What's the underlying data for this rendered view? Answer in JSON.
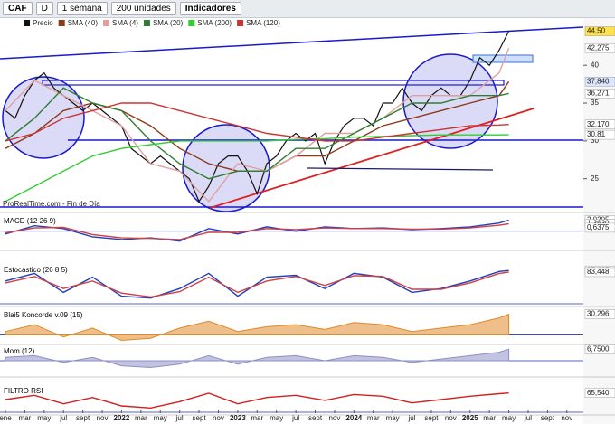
{
  "toolbar": {
    "symbol": "CAF",
    "mode": "D",
    "period": "1 semana",
    "units": "200 unidades",
    "indicators": "Indicadores"
  },
  "chart_data": [
    {
      "type": "line",
      "source": "ProRealTime.com - Fin de Día",
      "xlim": [
        -0.56,
        59.7
      ],
      "xticks": [
        {
          "value": 0,
          "label": "ene"
        },
        {
          "value": 2,
          "label": "mar"
        },
        {
          "value": 4,
          "label": "may"
        },
        {
          "value": 6,
          "label": "jul"
        },
        {
          "value": 8,
          "label": "sept"
        },
        {
          "value": 10,
          "label": "nov"
        },
        {
          "value": 12,
          "label": "2022"
        },
        {
          "value": 14,
          "label": "mar"
        },
        {
          "value": 16,
          "label": "may"
        },
        {
          "value": 18,
          "label": "jul"
        },
        {
          "value": 20,
          "label": "sept"
        },
        {
          "value": 22,
          "label": "nov"
        },
        {
          "value": 24,
          "label": "2023"
        },
        {
          "value": 26,
          "label": "mar"
        },
        {
          "value": 28,
          "label": "may"
        },
        {
          "value": 30,
          "label": "jul"
        },
        {
          "value": 32,
          "label": "sept"
        },
        {
          "value": 34,
          "label": "nov"
        },
        {
          "value": 36,
          "label": "2024"
        },
        {
          "value": 38,
          "label": "mar"
        },
        {
          "value": 40,
          "label": "may"
        },
        {
          "value": 42,
          "label": "jul"
        },
        {
          "value": 44,
          "label": "sept"
        },
        {
          "value": 46,
          "label": "nov"
        },
        {
          "value": 48,
          "label": "2025"
        },
        {
          "value": 50,
          "label": "mar"
        },
        {
          "value": 52,
          "label": "may"
        },
        {
          "value": 54,
          "label": "jul"
        },
        {
          "value": 56,
          "label": "sept"
        },
        {
          "value": 58,
          "label": "nov"
        }
      ],
      "ylim": [
        20.9,
        46
      ],
      "yticks": [
        25,
        30,
        35,
        40
      ],
      "series": [
        {
          "name": "Precio",
          "color": "#111111",
          "x": [
            0,
            1,
            2,
            3,
            4,
            5,
            6,
            7,
            8,
            9,
            10,
            11,
            12,
            13,
            14,
            15,
            16,
            17,
            18,
            19,
            20,
            21,
            22,
            23,
            24,
            25,
            26,
            27,
            28,
            29,
            30,
            31,
            32,
            33,
            34,
            35,
            36,
            37,
            38,
            39,
            40,
            41,
            42,
            43,
            44,
            45,
            46,
            47,
            48,
            49,
            50,
            51,
            52
          ],
          "values": [
            34,
            33,
            36,
            38,
            39,
            37,
            36,
            35,
            34,
            35,
            34,
            33,
            32,
            29,
            28,
            27,
            28,
            27,
            26,
            25,
            22,
            24,
            27,
            28,
            28,
            26,
            23,
            27,
            28,
            30,
            31,
            30,
            31,
            27,
            30,
            32,
            33,
            33,
            32,
            35,
            35,
            37,
            35,
            34,
            36,
            37,
            36,
            36,
            38,
            41,
            40,
            42,
            44.5
          ]
        },
        {
          "name": "SMA (40)",
          "color": "#8b3a1a",
          "x": [
            0,
            3,
            6,
            9,
            12,
            15,
            18,
            21,
            24,
            27,
            30,
            33,
            36,
            39,
            42,
            45,
            48,
            51,
            52
          ],
          "values": [
            29,
            31,
            34,
            35,
            34,
            32,
            29,
            27,
            26,
            26,
            28,
            28,
            30,
            32,
            33,
            34,
            35,
            36,
            37.84
          ]
        },
        {
          "name": "SMA (4)",
          "color": "#e0a0a0",
          "x": [
            0,
            3,
            6,
            9,
            12,
            15,
            18,
            21,
            24,
            27,
            30,
            33,
            36,
            39,
            42,
            45,
            48,
            51,
            52
          ],
          "values": [
            34,
            38,
            36,
            34,
            32,
            27,
            26,
            22,
            27,
            26,
            28,
            31,
            31,
            33,
            36,
            36,
            36,
            39,
            42.275
          ]
        },
        {
          "name": "SMA (20)",
          "color": "#2e7d32",
          "x": [
            0,
            3,
            6,
            9,
            12,
            15,
            18,
            21,
            24,
            27,
            30,
            33,
            36,
            39,
            42,
            45,
            48,
            51,
            52
          ],
          "values": [
            30,
            33,
            37,
            35,
            34,
            30,
            27,
            25,
            26,
            26,
            29,
            29,
            31,
            33,
            35,
            35,
            36,
            36,
            36.271
          ]
        },
        {
          "name": "SMA (200)",
          "color": "#33cc33",
          "x": [
            0,
            3,
            6,
            9,
            12,
            15,
            18,
            21,
            24,
            27,
            30,
            33,
            36,
            39,
            42,
            45,
            48,
            51,
            52
          ],
          "values": [
            22,
            24,
            26,
            28,
            29,
            29.5,
            30,
            30,
            30,
            30,
            30.2,
            30.3,
            30.5,
            30.6,
            30.7,
            30.8,
            30.8,
            30.8,
            30.81
          ]
        },
        {
          "name": "SMA (120)",
          "color": "#cc3333",
          "x": [
            0,
            3,
            6,
            9,
            12,
            15,
            18,
            21,
            24,
            27,
            30,
            33,
            36,
            39,
            42,
            45,
            48,
            51,
            52
          ],
          "values": [
            30,
            31,
            33,
            34,
            35,
            35,
            34,
            33,
            32,
            31,
            30.5,
            30,
            30,
            30.5,
            31,
            31.5,
            32,
            32.1,
            32.17
          ]
        }
      ],
      "tags": [
        {
          "value": 44.5,
          "label": "44,50",
          "color": "#ffe14d"
        },
        {
          "value": 42.275,
          "label": "42,275",
          "color": "#ffffff"
        },
        {
          "value": 37.84,
          "label": "37,840",
          "color": "#dde6ff"
        },
        {
          "value": 36.271,
          "label": "36,271",
          "color": "#ffffff"
        },
        {
          "value": 32.17,
          "label": "32,170",
          "color": "#ffffff"
        },
        {
          "value": 30.81,
          "label": "30,81",
          "color": "#ffffff"
        }
      ]
    },
    {
      "type": "line",
      "title": "MACD (12 26 9)",
      "ylim": [
        -3,
        2.6
      ],
      "x": [
        0,
        3,
        6,
        9,
        12,
        15,
        18,
        21,
        24,
        27,
        30,
        33,
        36,
        39,
        42,
        45,
        48,
        51,
        52
      ],
      "series": [
        {
          "color": "#1f3fbf",
          "values": [
            -0.5,
            1,
            0.5,
            -1,
            -1.5,
            -1.2,
            -1.8,
            0.5,
            -0.5,
            0.8,
            0,
            0.8,
            0.5,
            0.6,
            0.3,
            0.5,
            0.8,
            1.5,
            2.0205
          ]
        },
        {
          "color": "#d04040",
          "values": [
            -0.3,
            0.6,
            0.7,
            -0.6,
            -1.2,
            -1.3,
            -1.5,
            -0.2,
            -0.2,
            0.5,
            0.3,
            0.6,
            0.5,
            0.5,
            0.4,
            0.4,
            0.6,
            1.1,
            1.363
          ]
        }
      ],
      "tags": [
        {
          "value": 2.0205,
          "label": "2,0205",
          "color": "#ffffff"
        },
        {
          "value": 1.363,
          "label": "1,3630",
          "color": "#ffffff"
        },
        {
          "value": 0.6375,
          "label": "0,6375",
          "color": "#ffffff"
        }
      ]
    },
    {
      "type": "line",
      "title": "Estocástico (26 8 5)",
      "ylim": [
        0,
        100
      ],
      "x": [
        0,
        3,
        6,
        9,
        12,
        15,
        18,
        21,
        24,
        27,
        30,
        33,
        36,
        39,
        42,
        45,
        48,
        51,
        52
      ],
      "series": [
        {
          "color": "#1f3fbf",
          "values": [
            60,
            80,
            30,
            70,
            20,
            15,
            40,
            80,
            20,
            70,
            75,
            40,
            80,
            70,
            30,
            40,
            60,
            85,
            87.695
          ]
        },
        {
          "color": "#d04040",
          "values": [
            55,
            72,
            40,
            60,
            28,
            18,
            32,
            70,
            30,
            60,
            72,
            48,
            74,
            72,
            38,
            38,
            55,
            80,
            83.448
          ]
        }
      ],
      "tags": [
        {
          "value": 87.695,
          "label": "87,695",
          "color": "#ffffff"
        },
        {
          "value": 83.448,
          "label": "83,448",
          "color": "#ffffff"
        }
      ]
    },
    {
      "type": "area",
      "title": "Blai5 Koncorde v.09 (15)",
      "ylim": [
        -10,
        35
      ],
      "x": [
        0,
        3,
        6,
        9,
        12,
        15,
        18,
        21,
        24,
        27,
        30,
        33,
        36,
        39,
        42,
        45,
        48,
        51,
        52
      ],
      "series": [
        {
          "color": "#e08a2a",
          "values": [
            5,
            15,
            -3,
            10,
            -8,
            -5,
            10,
            20,
            5,
            12,
            15,
            8,
            18,
            15,
            5,
            10,
            15,
            25,
            30.296
          ]
        }
      ],
      "tags": [
        {
          "value": 30.296,
          "label": "30,296",
          "color": "#ffffff"
        }
      ]
    },
    {
      "type": "area",
      "title": "Mom (12)",
      "ylim": [
        -8,
        8
      ],
      "x": [
        0,
        3,
        6,
        9,
        12,
        15,
        18,
        21,
        24,
        27,
        30,
        33,
        36,
        39,
        42,
        45,
        48,
        51,
        52
      ],
      "series": [
        {
          "color": "#8f8fc8",
          "values": [
            2,
            3,
            -1,
            2,
            -3,
            -4,
            -2,
            3,
            -2,
            2,
            3,
            0,
            3,
            2,
            -1,
            1,
            3,
            5,
            6.75
          ]
        }
      ],
      "tags": [
        {
          "value": 6.75,
          "label": "6,7500",
          "color": "#ffffff"
        }
      ]
    },
    {
      "type": "line",
      "title": "FILTRO RSI",
      "ylim": [
        20,
        80
      ],
      "x": [
        0,
        3,
        6,
        9,
        12,
        15,
        18,
        21,
        24,
        27,
        30,
        33,
        36,
        39,
        42,
        45,
        48,
        51,
        52
      ],
      "series": [
        {
          "color": "#d02020",
          "values": [
            50,
            60,
            40,
            55,
            35,
            30,
            45,
            65,
            40,
            55,
            60,
            48,
            62,
            58,
            42,
            50,
            58,
            64,
            65.54
          ]
        }
      ],
      "tags": [
        {
          "value": 65.54,
          "label": "65,540",
          "color": "#ffffff"
        }
      ]
    }
  ]
}
